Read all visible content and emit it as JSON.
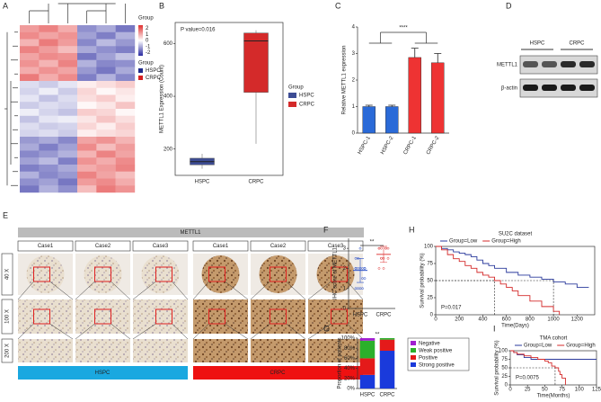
{
  "heatmap": {
    "panel": "A",
    "annotation_title": "Group",
    "legend_title": "Group",
    "scale_ticks": [
      2,
      1,
      0,
      -1,
      -2
    ],
    "scale_lim": [
      -2.5,
      2.5
    ],
    "groups": [
      {
        "name": "HSPC",
        "color": "#1f2a8a"
      },
      {
        "name": "CRPC",
        "color": "#d62020"
      }
    ],
    "values": [
      [
        1.2,
        1.5,
        1.0,
        -1.3,
        -1.0,
        -1.6
      ],
      [
        1.4,
        1.1,
        1.3,
        -1.1,
        -1.5,
        -0.9
      ],
      [
        0.9,
        1.6,
        1.2,
        -1.4,
        -0.8,
        -1.2
      ],
      [
        1.5,
        1.2,
        0.8,
        -1.0,
        -1.3,
        -1.5
      ],
      [
        1.1,
        1.4,
        1.3,
        -1.6,
        -1.1,
        -0.7
      ],
      [
        1.3,
        0.9,
        1.5,
        -0.9,
        -1.4,
        -1.3
      ],
      [
        1.0,
        1.3,
        1.1,
        -1.2,
        -1.6,
        -1.0
      ],
      [
        1.6,
        1.0,
        1.4,
        -1.5,
        -0.9,
        -1.4
      ],
      [
        -0.4,
        -0.6,
        -0.3,
        0.2,
        0.4,
        0.6
      ],
      [
        -0.5,
        -0.2,
        -0.6,
        0.5,
        0.1,
        0.3
      ],
      [
        -0.3,
        -0.7,
        -0.4,
        0.4,
        0.6,
        0.2
      ],
      [
        -0.6,
        -0.4,
        -0.5,
        0.1,
        0.3,
        0.7
      ],
      [
        -0.2,
        -0.5,
        -0.7,
        0.6,
        0.5,
        0.1
      ],
      [
        -0.7,
        -0.3,
        -0.2,
        0.3,
        0.7,
        0.4
      ],
      [
        -0.4,
        -0.6,
        -0.5,
        0.5,
        0.2,
        0.6
      ],
      [
        -0.5,
        -0.4,
        -0.6,
        0.2,
        0.4,
        0.5
      ],
      [
        -1.2,
        -1.0,
        -1.4,
        1.1,
        1.3,
        0.9
      ],
      [
        -1.0,
        -1.5,
        -1.1,
        1.4,
        0.8,
        1.2
      ],
      [
        -1.4,
        -1.2,
        -0.9,
        0.9,
        1.5,
        1.1
      ],
      [
        -1.1,
        -0.8,
        -1.5,
        1.3,
        1.0,
        1.4
      ],
      [
        -1.5,
        -1.3,
        -1.0,
        1.0,
        1.2,
        1.5
      ],
      [
        -0.9,
        -1.4,
        -1.2,
        1.5,
        1.1,
        0.8
      ],
      [
        -1.3,
        -1.1,
        -1.6,
        1.2,
        1.4,
        1.0
      ],
      [
        -1.6,
        -0.9,
        -1.3,
        0.8,
        1.6,
        1.3
      ]
    ]
  },
  "blot": {
    "panel": "D",
    "groups": [
      "HSPC",
      "CRPC"
    ],
    "rows": [
      "METTL1",
      "β-actin"
    ]
  },
  "ihc": {
    "panel": "E",
    "title": "METTL1",
    "cases": [
      "Case1",
      "Case2",
      "Case3"
    ],
    "magnifications": [
      "40 X",
      "100 X",
      "200 X"
    ],
    "groups": [
      {
        "name": "HSPC",
        "color": "#1aa8e0"
      },
      {
        "name": "CRPC",
        "color": "#ee1111"
      }
    ]
  },
  "chart_data": [
    {
      "panel": "B",
      "type": "box",
      "annotation": "P value=0.016",
      "ylabel": "METTL1 Expression (Count)",
      "categories": [
        "HSPC",
        "CRPC"
      ],
      "legend_title": "Group",
      "series": [
        {
          "name": "HSPC",
          "color": "#3d4c94",
          "min": 125,
          "q1": 140,
          "median": 152,
          "q3": 165,
          "max": 182
        },
        {
          "name": "CRPC",
          "color": "#d42a2a",
          "min": 220,
          "q1": 415,
          "median": 610,
          "q3": 640,
          "max": 650
        }
      ],
      "ylim": [
        100,
        680
      ],
      "yticks": [
        200,
        400,
        600
      ]
    },
    {
      "panel": "C",
      "type": "bar",
      "ylabel": "Relative METTL1 expression",
      "annotation": "****",
      "categories": [
        "HSPC-1",
        "HSPC-2",
        "CRPC-1",
        "CRPC-2"
      ],
      "values": [
        1,
        1,
        2.85,
        2.65
      ],
      "errors": [
        0.05,
        0.05,
        0.35,
        0.35
      ],
      "colors": [
        "#2a6ad8",
        "#2a6ad8",
        "#ee3333",
        "#ee3333"
      ],
      "ylim": [
        0,
        4
      ],
      "yticks": [
        0,
        1,
        2,
        3,
        4
      ]
    },
    {
      "panel": "F",
      "type": "dot",
      "ylabel": "IHC score of METTL1",
      "annotation": "**",
      "categories": [
        "HSPC",
        "CRPC"
      ],
      "groups": [
        {
          "color": "#2a50c8",
          "values": [
            1,
            1,
            1,
            1.5,
            1.5,
            2,
            2,
            2,
            2,
            2,
            2.5,
            2.5,
            3,
            1,
            2,
            2
          ],
          "mean": 1.9,
          "sd": 0.6
        },
        {
          "color": "#e04040",
          "values": [
            2,
            2.5,
            2.5,
            3,
            3,
            3,
            2.5,
            2,
            3,
            2.5,
            3,
            3
          ],
          "mean": 2.7,
          "sd": 0.4
        }
      ],
      "ylim": [
        0,
        3.5
      ],
      "yticks": [
        0,
        1,
        2,
        3
      ]
    },
    {
      "panel": "G",
      "type": "stacked_bar",
      "ylabel": "Proportion of patients",
      "annotation": "**",
      "categories": [
        "HSPC",
        "CRPC"
      ],
      "series": [
        {
          "name": "Strong positive",
          "color": "#1a3adb",
          "values": [
            27,
            75
          ]
        },
        {
          "name": "Positive",
          "color": "#e41a1a",
          "values": [
            33,
            22
          ]
        },
        {
          "name": "Weak positive",
          "color": "#2bb02b",
          "values": [
            35,
            3
          ]
        },
        {
          "name": "Negative",
          "color": "#a01fd0",
          "values": [
            5,
            0
          ]
        }
      ],
      "ylim": [
        0,
        100
      ],
      "yticks": [
        {
          "value": 0,
          "label": "0%"
        },
        {
          "value": 20,
          "label": "20%"
        },
        {
          "value": 40,
          "label": "40%"
        },
        {
          "value": 60,
          "label": "60%"
        },
        {
          "value": 80,
          "label": "80%"
        },
        {
          "value": 100,
          "label": "100%"
        }
      ]
    },
    {
      "panel": "H",
      "type": "km",
      "title": "SU2C dataset",
      "annotation": "P=0.017",
      "xlabel": "Time(Days)",
      "ylabel": "Survival probability (%)",
      "series": [
        {
          "name": "Group=Low",
          "color": "#2a3a9c",
          "x": [
            0,
            50,
            100,
            150,
            200,
            250,
            300,
            350,
            400,
            450,
            500,
            600,
            700,
            800,
            900,
            1000,
            1100,
            1200,
            1300
          ],
          "values": [
            100,
            97,
            95,
            92,
            90,
            88,
            85,
            80,
            75,
            72,
            68,
            62,
            58,
            55,
            52,
            48,
            45,
            40,
            40
          ]
        },
        {
          "name": "Group=High",
          "color": "#d42a2a",
          "x": [
            0,
            50,
            100,
            150,
            200,
            250,
            300,
            350,
            400,
            450,
            500,
            550,
            600,
            650,
            700,
            800,
            900,
            1000,
            1050
          ],
          "values": [
            100,
            95,
            88,
            82,
            78,
            72,
            68,
            62,
            58,
            55,
            50,
            45,
            40,
            35,
            28,
            20,
            12,
            5,
            0
          ]
        }
      ],
      "xlim": [
        0,
        1350
      ],
      "xticks": [
        0,
        200,
        400,
        600,
        800,
        1000,
        1200
      ],
      "ylim": [
        0,
        100
      ],
      "yticks": [
        0,
        25,
        50,
        75,
        100
      ]
    },
    {
      "panel": "I",
      "type": "km",
      "title": "TMA cohort",
      "annotation": "P=0.0075",
      "xlabel": "Time(Months)",
      "ylabel": "Survival probability (%)",
      "series": [
        {
          "name": "Group=Low",
          "color": "#2a3a9c",
          "x": [
            0,
            5,
            10,
            20,
            30,
            125
          ],
          "values": [
            100,
            95,
            88,
            80,
            75,
            75
          ]
        },
        {
          "name": "Group=High",
          "color": "#d42a2a",
          "x": [
            0,
            5,
            10,
            20,
            30,
            40,
            50,
            55,
            60,
            65,
            70,
            72,
            75,
            80
          ],
          "values": [
            100,
            95,
            90,
            85,
            80,
            75,
            70,
            65,
            55,
            50,
            40,
            30,
            20,
            0
          ]
        }
      ],
      "xlim": [
        0,
        125
      ],
      "xticks": [
        0,
        25,
        50,
        75,
        100,
        125
      ],
      "ylim": [
        0,
        100
      ],
      "yticks": [
        0,
        25,
        50,
        75,
        100
      ]
    }
  ]
}
